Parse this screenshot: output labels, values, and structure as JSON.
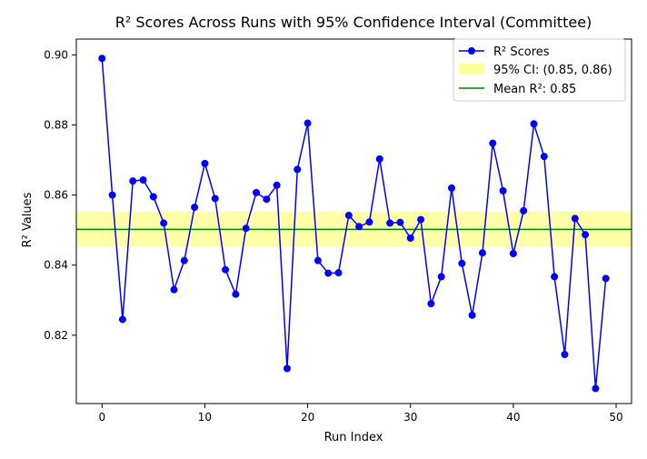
{
  "chart_data": {
    "type": "line",
    "title": "R² Scores Across Runs with 95% Confidence Interval (Committee)",
    "xlabel": "Run Index",
    "ylabel": "R² Values",
    "xlim": [
      -2.5,
      51.5
    ],
    "ylim": [
      0.8005,
      0.9045
    ],
    "xticks": [
      0,
      10,
      20,
      30,
      40,
      50
    ],
    "yticks": [
      0.82,
      0.84,
      0.86,
      0.88,
      0.9
    ],
    "ytick_labels": [
      "0.82",
      "0.84",
      "0.86",
      "0.88",
      "0.90"
    ],
    "grid": false,
    "legend_position": "top-right",
    "series": [
      {
        "name": "R² Scores",
        "color": "#0000ff",
        "marker": "circle",
        "x": [
          0,
          1,
          2,
          3,
          4,
          5,
          6,
          7,
          8,
          9,
          10,
          11,
          12,
          13,
          14,
          15,
          16,
          17,
          18,
          19,
          20,
          21,
          22,
          23,
          24,
          25,
          26,
          27,
          28,
          29,
          30,
          31,
          32,
          33,
          34,
          35,
          36,
          37,
          38,
          39,
          40,
          41,
          42,
          43,
          44,
          45,
          46,
          47,
          48,
          49
        ],
        "values": [
          0.899,
          0.86,
          0.8245,
          0.864,
          0.8643,
          0.8595,
          0.852,
          0.833,
          0.8413,
          0.8565,
          0.869,
          0.859,
          0.8387,
          0.8317,
          0.8505,
          0.8607,
          0.8588,
          0.8628,
          0.8105,
          0.8673,
          0.8805,
          0.8413,
          0.8377,
          0.8378,
          0.8542,
          0.851,
          0.8523,
          0.8703,
          0.852,
          0.8522,
          0.8477,
          0.853,
          0.829,
          0.8367,
          0.862,
          0.8405,
          0.8257,
          0.8435,
          0.8748,
          0.8612,
          0.8433,
          0.8555,
          0.8803,
          0.871,
          0.8367,
          0.8145,
          0.8533,
          0.8487,
          0.8048,
          0.8362
        ]
      }
    ],
    "confidence_band": {
      "label": "95% CI: (0.85, 0.86)",
      "lower": 0.8453,
      "upper": 0.8553,
      "color": "#ffff99"
    },
    "mean_line": {
      "label": "Mean R²: 0.85",
      "value": 0.8502,
      "color": "#008000"
    }
  }
}
